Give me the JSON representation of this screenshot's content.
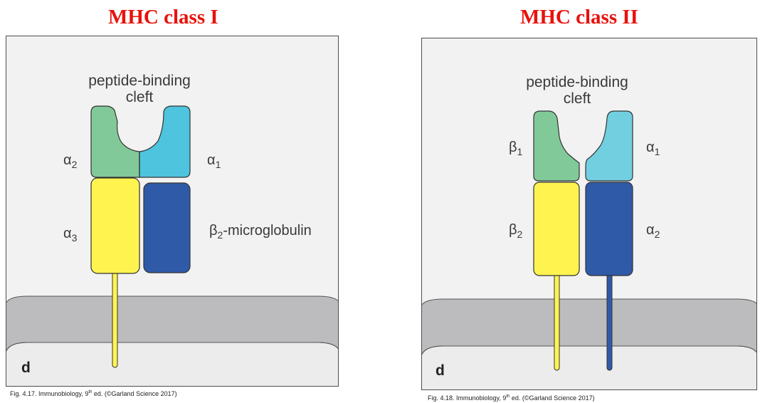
{
  "class1": {
    "title": "MHC class I",
    "cleft_line1": "peptide-binding",
    "cleft_line2": "cleft",
    "alpha2": {
      "sym": "α",
      "sub": "2"
    },
    "alpha1": {
      "sym": "α",
      "sub": "1"
    },
    "alpha3": {
      "sym": "α",
      "sub": "3"
    },
    "b2m": {
      "sym": "β",
      "sub": "2",
      "rest": "-microglobulin"
    },
    "panel_letter": "d",
    "caption": {
      "pre": "Fig. 4.17. Immunobiology, 9",
      "sup": "th",
      "post": " ed. (©Garland Science 2017)"
    }
  },
  "class2": {
    "title": "MHC class II",
    "cleft_line1": "peptide-binding",
    "cleft_line2": "cleft",
    "beta1": {
      "sym": "β",
      "sub": "1"
    },
    "alpha1": {
      "sym": "α",
      "sub": "1"
    },
    "beta2": {
      "sym": "β",
      "sub": "2"
    },
    "alpha2": {
      "sym": "α",
      "sub": "2"
    },
    "panel_letter": "d",
    "caption": {
      "pre": "Fig. 4.18. Immunobiology, 9",
      "sup": "th",
      "post": " ed. (©Garland Science 2017)"
    }
  },
  "colors": {
    "title_red": "#e8120c",
    "green_domain": "#82c999",
    "cyan_domain": "#4ec4de",
    "light_cyan_domain": "#72cfe0",
    "yellow_domain": "#fff44f",
    "blue_domain": "#2f5aa8",
    "membrane_gray": "#bcbcbe",
    "cytoplasm": "#ededed",
    "background": "#f2f2f2"
  }
}
